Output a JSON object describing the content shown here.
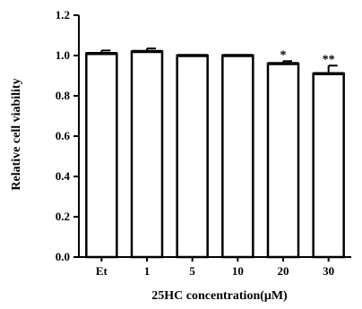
{
  "chart_data": {
    "type": "bar",
    "title": "",
    "xlabel": "25HC concentration(μM)",
    "ylabel": "Relative cell viability",
    "categories": [
      "Et",
      "1",
      "5",
      "10",
      "20",
      "30"
    ],
    "values": [
      1.01,
      1.02,
      1.0,
      1.0,
      0.96,
      0.91
    ],
    "errors": [
      0.015,
      0.015,
      0.0,
      0.0,
      0.012,
      0.04
    ],
    "significance": [
      "",
      "",
      "",
      "",
      "*",
      "**"
    ],
    "ylim": [
      0.0,
      1.2
    ],
    "yticks": [
      "0.0",
      "0.2",
      "0.4",
      "0.6",
      "0.8",
      "1.0",
      "1.2"
    ],
    "grid": false,
    "bar_fill": "#ffffff",
    "bar_stroke": "#000000"
  }
}
